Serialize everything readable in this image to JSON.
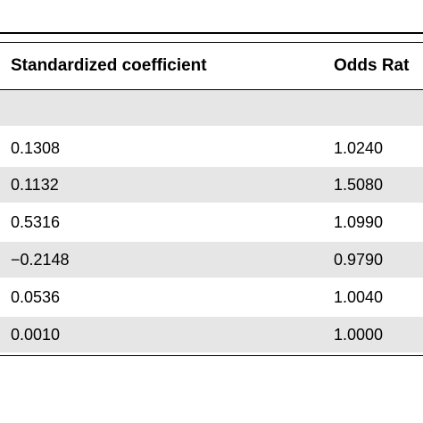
{
  "table": {
    "headers": [
      "Standardized coefficient",
      "Odds Rat"
    ],
    "rows": [
      {
        "coef": "",
        "odds": ""
      },
      {
        "coef": "0.1308",
        "odds": "1.0240"
      },
      {
        "coef": "0.1132",
        "odds": "1.5080"
      },
      {
        "coef": "0.5316",
        "odds": "1.0990"
      },
      {
        "coef": "−0.2148",
        "odds": "0.9790"
      },
      {
        "coef": "0.0536",
        "odds": "1.0040"
      },
      {
        "coef": "0.0010",
        "odds": "1.0000"
      }
    ]
  }
}
